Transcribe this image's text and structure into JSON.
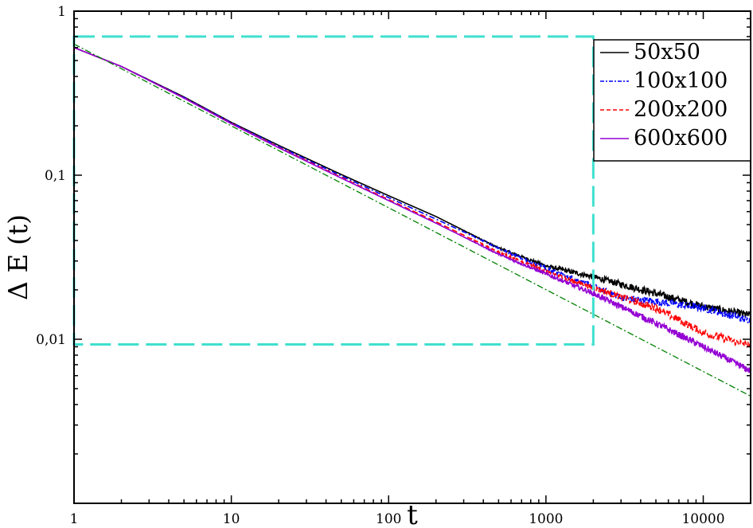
{
  "chart_data": {
    "type": "line",
    "title": "",
    "xlabel": "t",
    "ylabel": "Δ E (t)",
    "xscale": "log",
    "yscale": "log",
    "xlim": [
      1,
      20000
    ],
    "ylim": [
      0.001,
      1
    ],
    "x_ticks": [
      {
        "value": 1,
        "label": "1"
      },
      {
        "value": 10,
        "label": "10"
      },
      {
        "value": 100,
        "label": "100"
      },
      {
        "value": 1000,
        "label": "1000"
      },
      {
        "value": 10000,
        "label": "10000"
      }
    ],
    "y_ticks": [
      {
        "value": 1,
        "label": "1"
      },
      {
        "value": 0.1,
        "label": "0,1"
      },
      {
        "value": 0.01,
        "label": "0,01"
      },
      {
        "value": 0.001,
        "label": ""
      }
    ],
    "grid": false,
    "legend_position": "top-right",
    "series": [
      {
        "name": "50x50",
        "color": "#000000",
        "dash": "solid",
        "x": [
          1,
          2,
          5,
          10,
          20,
          50,
          100,
          200,
          500,
          1000,
          2000,
          5000,
          10000,
          20000
        ],
        "y": [
          0.6,
          0.46,
          0.3,
          0.21,
          0.152,
          0.101,
          0.075,
          0.056,
          0.036,
          0.028,
          0.024,
          0.019,
          0.0158,
          0.014
        ],
        "noise": 0.045
      },
      {
        "name": "100x100",
        "color": "#0000ff",
        "dash": "7,3,2,3",
        "x": [
          1,
          2,
          5,
          10,
          20,
          50,
          100,
          200,
          500,
          1000,
          2000,
          3000,
          5000,
          10000,
          20000
        ],
        "y": [
          0.6,
          0.46,
          0.298,
          0.209,
          0.15,
          0.099,
          0.073,
          0.054,
          0.036,
          0.027,
          0.021,
          0.018,
          0.017,
          0.0155,
          0.013
        ],
        "noise": 0.045
      },
      {
        "name": "200x200",
        "color": "#ff0000",
        "dash": "7,4",
        "x": [
          1,
          2,
          5,
          10,
          20,
          50,
          100,
          200,
          500,
          1000,
          2000,
          5000,
          10000,
          20000
        ],
        "y": [
          0.6,
          0.46,
          0.296,
          0.207,
          0.148,
          0.097,
          0.071,
          0.052,
          0.034,
          0.026,
          0.0205,
          0.0155,
          0.011,
          0.0091
        ],
        "noise": 0.045
      },
      {
        "name": "600x600",
        "color": "#9400d3",
        "dash": "solid",
        "x": [
          1,
          2,
          5,
          10,
          20,
          50,
          100,
          200,
          500,
          1000,
          2000,
          5000,
          10000,
          20000
        ],
        "y": [
          0.6,
          0.46,
          0.295,
          0.206,
          0.147,
          0.096,
          0.07,
          0.051,
          0.033,
          0.025,
          0.019,
          0.0125,
          0.009,
          0.0064
        ],
        "noise": 0.04
      },
      {
        "name": "",
        "color": "#008000",
        "dash": "8,3,2,3",
        "x": [
          1,
          20000
        ],
        "y": [
          0.63,
          0.0045
        ],
        "noise": 0
      }
    ],
    "annotations": [
      {
        "type": "dashed-rectangle",
        "color": "#40e0d0",
        "x": [
          1,
          2000
        ],
        "y": [
          0.0093,
          0.7
        ]
      }
    ]
  }
}
